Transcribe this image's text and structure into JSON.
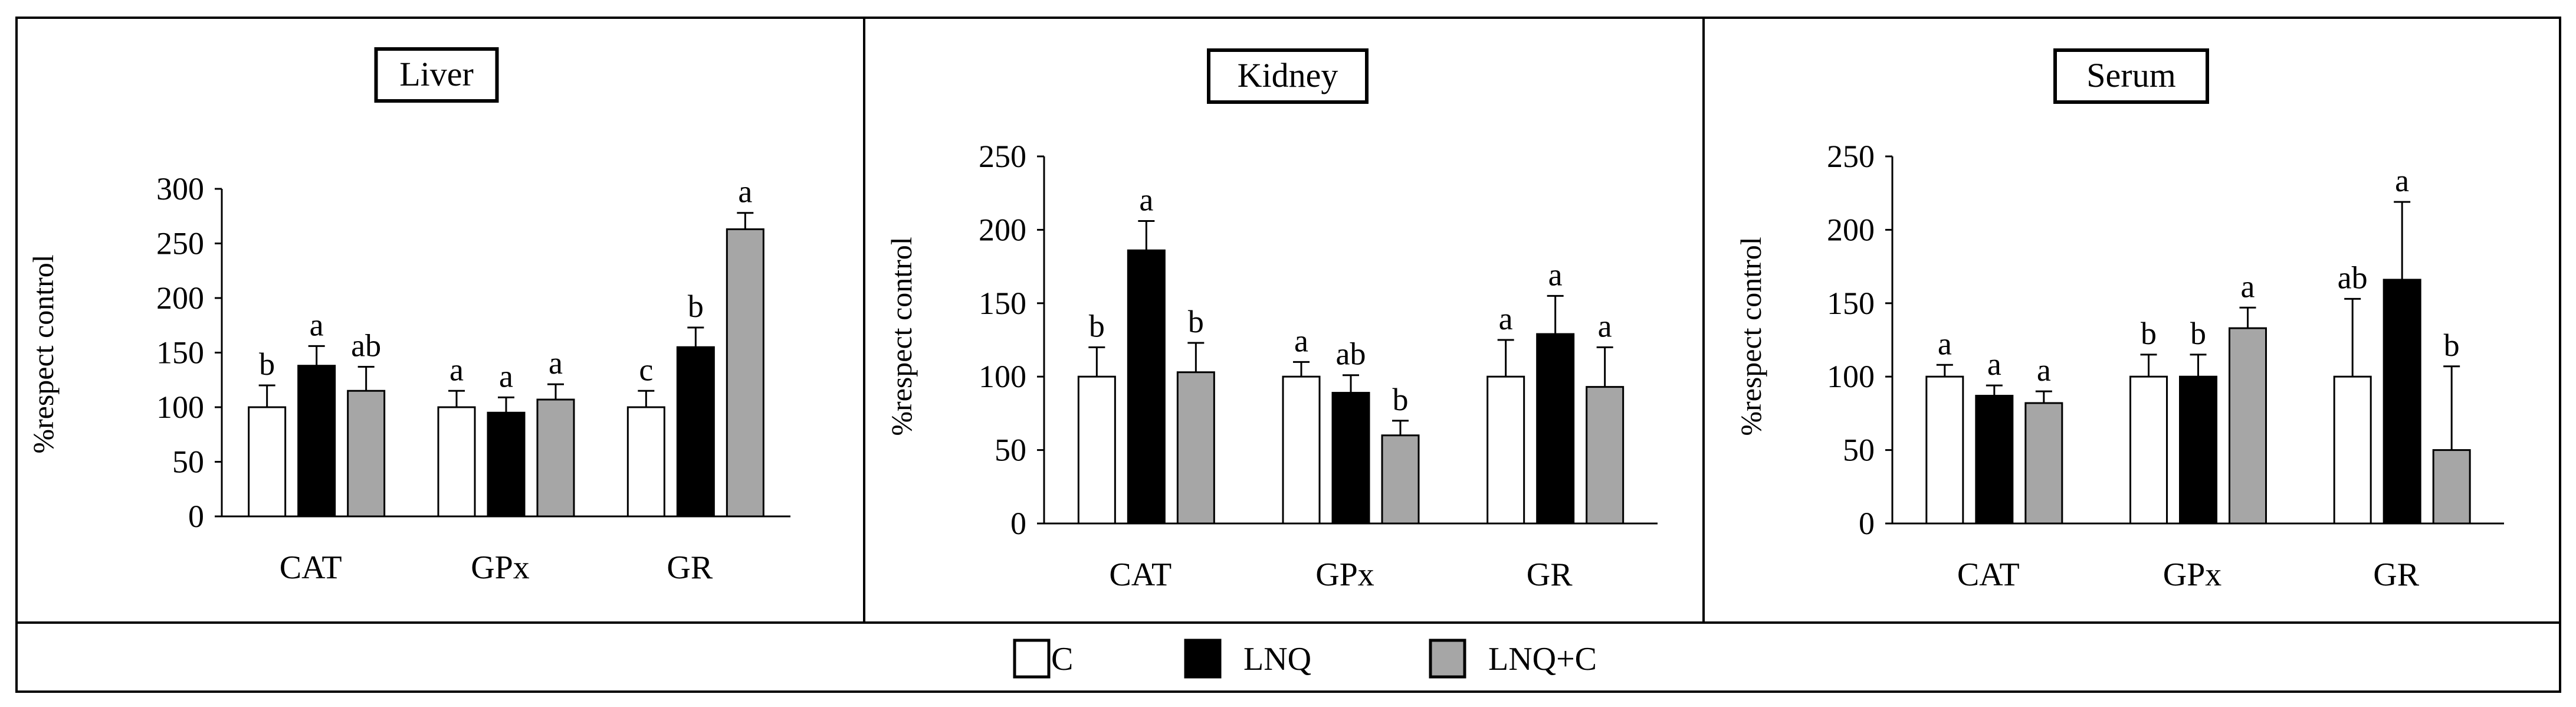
{
  "chart_data": [
    {
      "type": "bar",
      "title": "Liver",
      "ylabel": "%respect control",
      "xlabel": "",
      "categories": [
        "CAT",
        "GPx",
        "GR"
      ],
      "ylim": [
        0,
        300
      ],
      "yticks": [
        0,
        50,
        100,
        150,
        200,
        250,
        300
      ],
      "series": [
        {
          "name": "C",
          "values": [
            100,
            100,
            100
          ],
          "errors": [
            20,
            15,
            15
          ],
          "labels": [
            "b",
            "a",
            "c"
          ]
        },
        {
          "name": "LNQ",
          "values": [
            138,
            95,
            155
          ],
          "errors": [
            18,
            14,
            18
          ],
          "labels": [
            "a",
            "a",
            "b"
          ]
        },
        {
          "name": "LNQ+C",
          "values": [
            115,
            107,
            263
          ],
          "errors": [
            22,
            14,
            15
          ],
          "labels": [
            "ab",
            "a",
            "a"
          ]
        }
      ]
    },
    {
      "type": "bar",
      "title": "Kidney",
      "ylabel": "%respect control",
      "xlabel": "",
      "categories": [
        "CAT",
        "GPx",
        "GR"
      ],
      "ylim": [
        0,
        250
      ],
      "yticks": [
        0,
        50,
        100,
        150,
        200,
        250
      ],
      "series": [
        {
          "name": "C",
          "values": [
            100,
            100,
            100
          ],
          "errors": [
            20,
            10,
            25
          ],
          "labels": [
            "b",
            "a",
            "a"
          ]
        },
        {
          "name": "LNQ",
          "values": [
            186,
            89,
            129
          ],
          "errors": [
            20,
            12,
            26
          ],
          "labels": [
            "a",
            "ab",
            "a"
          ]
        },
        {
          "name": "LNQ+C",
          "values": [
            103,
            60,
            93
          ],
          "errors": [
            20,
            10,
            27
          ],
          "labels": [
            "b",
            "b",
            "a"
          ]
        }
      ]
    },
    {
      "type": "bar",
      "title": "Serum",
      "ylabel": "%respect control",
      "xlabel": "",
      "categories": [
        "CAT",
        "GPx",
        "GR"
      ],
      "ylim": [
        0,
        250
      ],
      "yticks": [
        0,
        50,
        100,
        150,
        200,
        250
      ],
      "series": [
        {
          "name": "C",
          "values": [
            100,
            100,
            100
          ],
          "errors": [
            8,
            15,
            53
          ],
          "labels": [
            "a",
            "b",
            "ab"
          ]
        },
        {
          "name": "LNQ",
          "values": [
            87,
            100,
            166
          ],
          "errors": [
            7,
            15,
            53
          ],
          "labels": [
            "a",
            "b",
            "a"
          ]
        },
        {
          "name": "LNQ+C",
          "values": [
            82,
            133,
            50
          ],
          "errors": [
            8,
            14,
            57
          ],
          "labels": [
            "a",
            "a",
            "b"
          ]
        }
      ]
    }
  ],
  "legend": {
    "position": "bottom",
    "items": [
      {
        "label": "C",
        "color": "#ffffff"
      },
      {
        "label": "LNQ",
        "color": "#000000"
      },
      {
        "label": "LNQ+C",
        "color": "#a6a6a6"
      }
    ]
  }
}
